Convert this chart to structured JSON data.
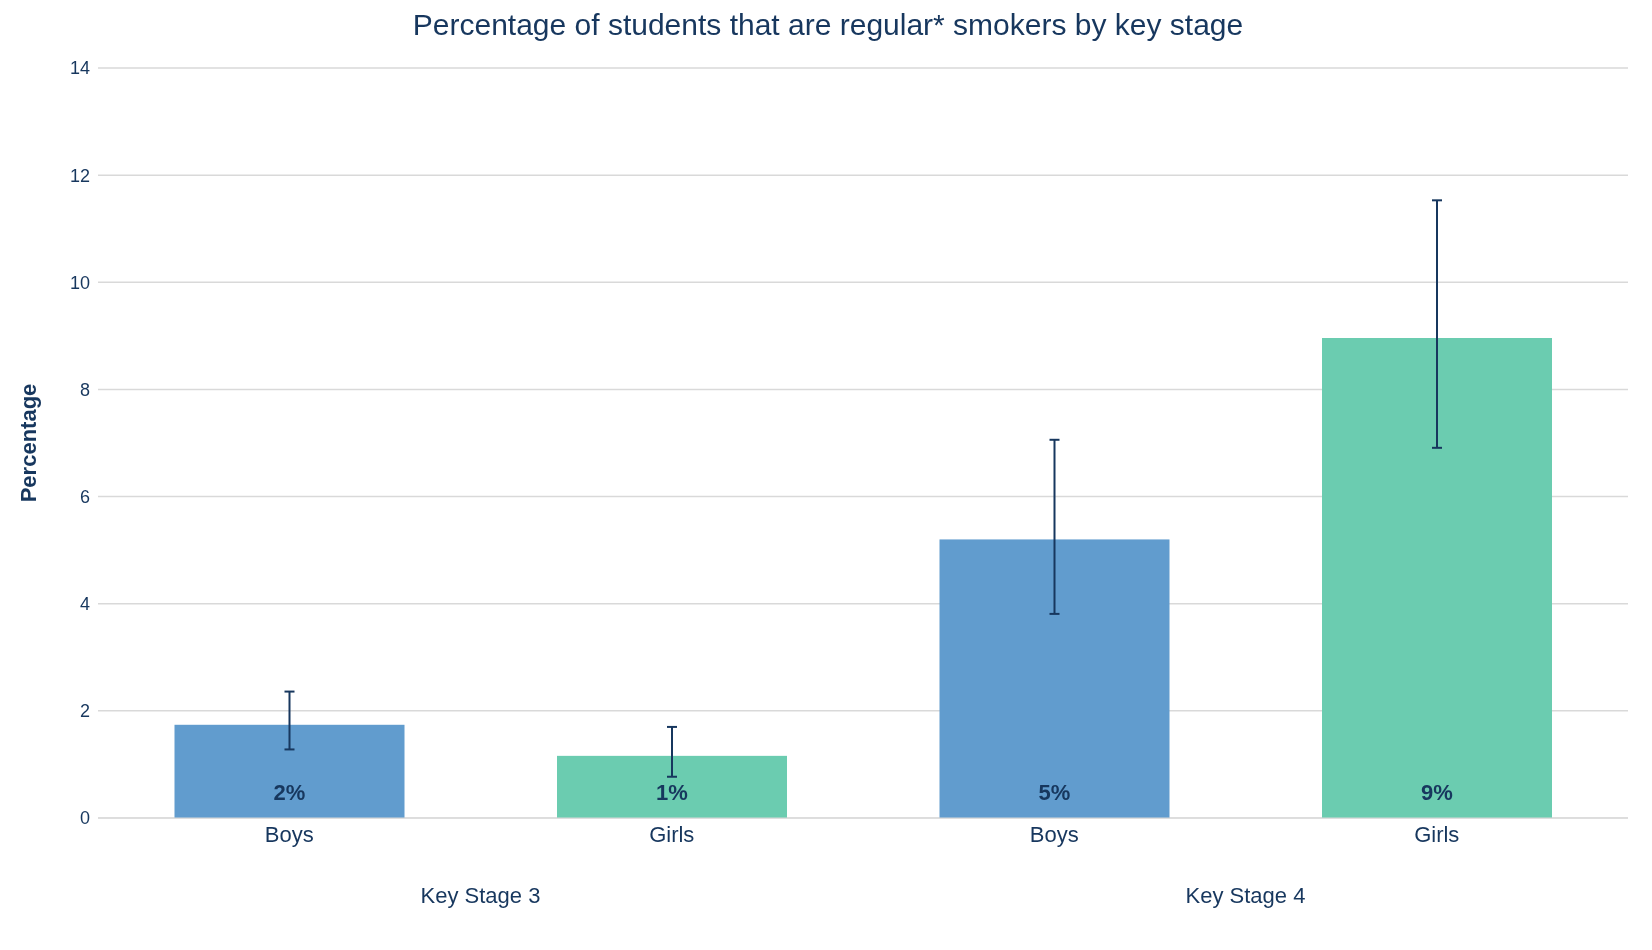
{
  "chart_data": {
    "type": "bar",
    "title": "Percentage of students that are regular* smokers by key stage",
    "ylabel": "Percentage",
    "categories": [
      "Boys",
      "Girls",
      "Boys",
      "Girls"
    ],
    "values": [
      1.74,
      1.16,
      5.2,
      8.96
    ],
    "colors": [
      "#619cce",
      "#6bccb0",
      "#619cce",
      "#6bccb0"
    ],
    "errors": [
      [
        1.28,
        2.36
      ],
      [
        0.77,
        1.7
      ],
      [
        3.81,
        7.06
      ],
      [
        6.91,
        11.53
      ]
    ],
    "value_labels": [
      "2%",
      "1%",
      "5%",
      "9%"
    ],
    "annotations": [
      "Key Stage 3",
      "Key Stage 4"
    ],
    "ylim": [
      0,
      14
    ],
    "yticks": [
      0,
      2,
      4,
      6,
      8,
      10,
      12,
      14
    ],
    "grid": "y"
  }
}
